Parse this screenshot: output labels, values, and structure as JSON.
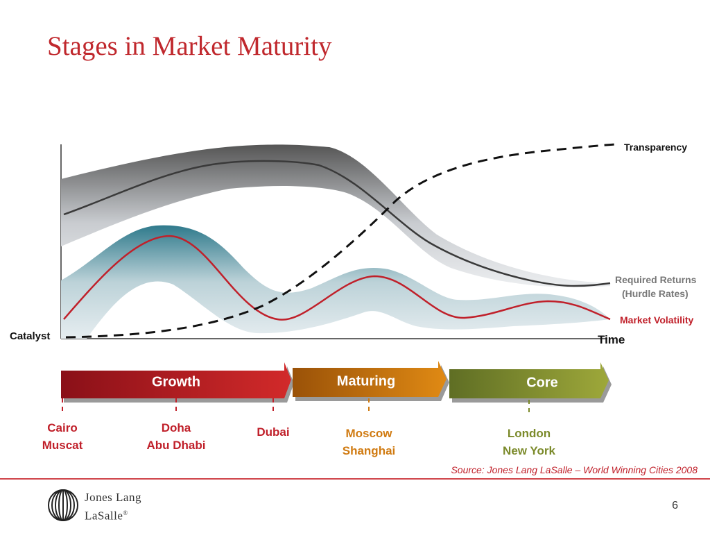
{
  "title": "Stages in Market Maturity",
  "labels": {
    "transparency": "Transparency",
    "required_returns_line1": "Required Returns",
    "required_returns_line2": "(Hurdle Rates)",
    "market_volatility": "Market Volatility",
    "catalyst": "Catalyst",
    "time": "Time"
  },
  "stages": [
    {
      "label": "Growth",
      "color": "#b01820"
    },
    {
      "label": "Maturing",
      "color": "#c8700c"
    },
    {
      "label": "Core",
      "color": "#7e8a2c"
    }
  ],
  "cities": {
    "cairo_muscat": [
      "Cairo",
      "Muscat"
    ],
    "doha_abudhabi": [
      "Doha",
      "Abu Dhabi"
    ],
    "dubai": [
      "Dubai"
    ],
    "moscow_shanghai": [
      "Moscow",
      "Shanghai"
    ],
    "london_newyork": [
      "London",
      "New York"
    ]
  },
  "source": "Source:  Jones Lang LaSalle – World Winning Cities 2008",
  "page_number": "6",
  "logo": {
    "line1": "Jones Lang",
    "line2": "LaSalle",
    "mark": "®"
  }
}
